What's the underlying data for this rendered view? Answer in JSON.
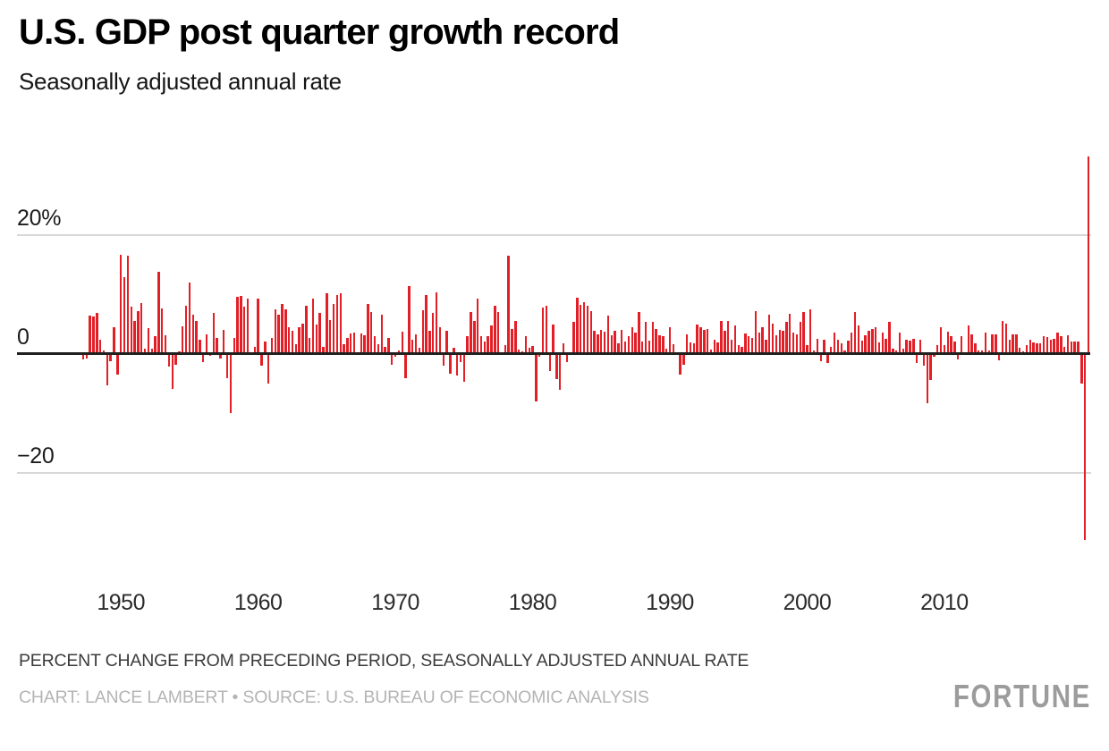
{
  "header": {
    "title": "U.S. GDP post quarter growth record",
    "subtitle": "Seasonally adjusted annual rate"
  },
  "footer": {
    "note": "PERCENT CHANGE FROM PRECEDING PERIOD, SEASONALLY ADJUSTED ANNUAL RATE",
    "credit": "CHART: LANCE LAMBERT • SOURCE: U.S. BUREAU OF ECONOMIC ANALYSIS",
    "brand": "FORTUNE"
  },
  "chart_data": {
    "type": "bar",
    "title": "U.S. GDP post quarter growth record",
    "subtitle": "Seasonally adjusted annual rate",
    "ylabel": "Percent change from preceding period, seasonally adjusted annual rate",
    "frequency": "quarterly",
    "x_start": "1947-Q2",
    "x_end": "2020-Q3",
    "ylim": [
      -35,
      35
    ],
    "grid": "horizontal",
    "bar_color": "#e21f26",
    "y_ticks": [
      {
        "value": 20,
        "label": "20%"
      },
      {
        "value": 0,
        "label": "0"
      },
      {
        "value": -20,
        "label": "−20"
      }
    ],
    "x_ticks": [
      1950,
      1960,
      1970,
      1980,
      1990,
      2000,
      2010
    ],
    "values": [
      -1.0,
      -0.8,
      6.4,
      6.2,
      6.8,
      2.3,
      0.5,
      -5.4,
      -1.3,
      4.5,
      -3.5,
      16.6,
      12.8,
      16.4,
      7.9,
      5.5,
      7.1,
      8.5,
      0.9,
      4.3,
      0.9,
      2.9,
      13.8,
      7.6,
      3.1,
      -2.2,
      -5.9,
      -1.9,
      0.4,
      4.6,
      8.1,
      11.9,
      6.6,
      5.5,
      2.4,
      -1.5,
      3.3,
      -0.4,
      6.8,
      2.6,
      -0.9,
      4.0,
      -4.1,
      -10.0,
      2.6,
      9.6,
      9.7,
      7.9,
      9.3,
      0.3,
      1.1,
      9.3,
      -2.1,
      2.0,
      -5.0,
      2.7,
      7.5,
      6.6,
      8.3,
      7.4,
      4.4,
      3.9,
      1.6,
      4.5,
      5.1,
      8.0,
      2.7,
      9.3,
      4.9,
      6.9,
      1.2,
      10.2,
      5.6,
      8.4,
      9.8,
      10.2,
      1.6,
      2.7,
      3.4,
      3.6,
      0.3,
      3.4,
      3.1,
      8.3,
      7.0,
      3.0,
      1.6,
      6.5,
      1.2,
      2.6,
      -1.9,
      -0.6,
      0.6,
      3.7,
      -4.2,
      11.3,
      2.3,
      3.2,
      1.0,
      7.3,
      9.8,
      3.9,
      6.8,
      10.3,
      4.5,
      -2.1,
      3.8,
      -3.4,
      1.0,
      -3.7,
      -1.5,
      -4.8,
      3.0,
      7.0,
      5.5,
      9.3,
      3.0,
      2.0,
      2.9,
      4.8,
      8.1,
      7.0,
      0.0,
      1.4,
      16.4,
      4.1,
      5.5,
      0.7,
      0.4,
      3.0,
      1.0,
      1.3,
      -8.0,
      -0.5,
      7.7,
      8.1,
      -2.9,
      4.9,
      -4.3,
      -6.1,
      1.8,
      -1.5,
      0.2,
      5.4,
      9.4,
      8.2,
      8.6,
      8.1,
      7.1,
      3.9,
      3.3,
      4.0,
      3.7,
      6.4,
      3.1,
      3.9,
      1.7,
      4.0,
      2.0,
      3.0,
      4.4,
      3.5,
      7.0,
      2.1,
      5.3,
      2.2,
      5.4,
      4.1,
      3.1,
      3.0,
      0.9,
      4.4,
      1.6,
      0.0,
      -3.6,
      -1.9,
      3.2,
      1.9,
      1.8,
      4.9,
      4.4,
      4.0,
      4.2,
      0.7,
      2.3,
      1.9,
      5.5,
      3.9,
      5.5,
      2.4,
      4.7,
      1.4,
      1.2,
      3.4,
      2.9,
      2.7,
      7.2,
      3.6,
      4.4,
      2.4,
      6.5,
      5.1,
      3.1,
      4.0,
      3.9,
      5.3,
      6.7,
      3.6,
      3.2,
      5.3,
      7.0,
      1.5,
      7.5,
      0.5,
      2.5,
      -1.3,
      2.4,
      -1.6,
      1.1,
      3.5,
      2.4,
      1.8,
      0.6,
      2.2,
      3.5,
      7.0,
      4.7,
      2.2,
      3.1,
      3.8,
      4.1,
      4.5,
      1.9,
      3.6,
      2.5,
      5.4,
      0.9,
      0.6,
      3.5,
      0.9,
      2.3,
      2.2,
      2.5,
      -1.6,
      2.3,
      -2.1,
      -8.4,
      -4.4,
      -0.6,
      1.5,
      4.5,
      1.5,
      3.7,
      3.0,
      2.0,
      -1.0,
      2.9,
      -0.1,
      4.7,
      3.2,
      1.7,
      0.5,
      0.5,
      3.6,
      0.5,
      3.2,
      3.2,
      -1.1,
      5.5,
      5.0,
      2.3,
      3.3,
      3.3,
      1.0,
      0.4,
      1.5,
      2.3,
      1.9,
      1.8,
      1.8,
      3.0,
      2.8,
      2.3,
      2.5,
      3.5,
      2.9,
      1.1,
      3.1,
      2.0,
      2.1,
      2.1,
      -5.0,
      -31.4,
      33.1
    ]
  }
}
